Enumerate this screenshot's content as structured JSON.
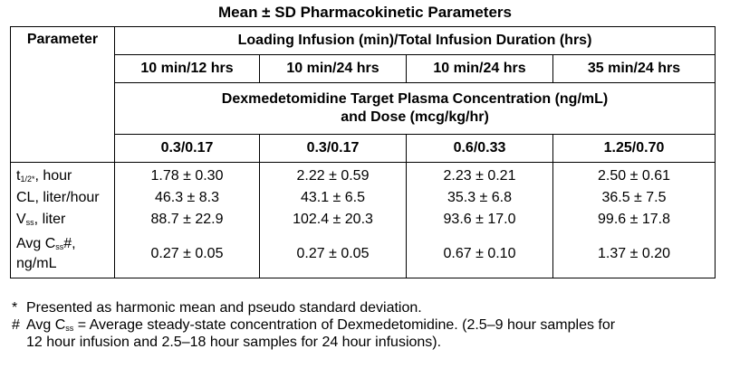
{
  "title": "Mean ± SD Pharmacokinetic Parameters",
  "header": {
    "parameter": "Parameter",
    "loading": "Loading Infusion (min)/Total Infusion Duration (hrs)",
    "durations": [
      "10 min/12 hrs",
      "10 min/24 hrs",
      "10 min/24 hrs",
      "35 min/24 hrs"
    ],
    "target_line1": "Dexmedetomidine Target Plasma Concentration (ng/mL)",
    "target_line2": "and Dose (mcg/kg/hr)",
    "doses": [
      "0.3/0.17",
      "0.3/0.17",
      "0.6/0.33",
      "1.25/0.70"
    ]
  },
  "rows": [
    {
      "label": "t",
      "sub": "1/2*",
      "suffix": ", hour",
      "values": [
        "1.78 ± 0.30",
        "2.22 ± 0.59",
        "2.23 ± 0.21",
        "2.50 ± 0.61"
      ]
    },
    {
      "label": "CL, liter/hour",
      "values": [
        "46.3 ± 8.3",
        "43.1 ± 6.5",
        "35.3 ± 6.8",
        "36.5 ± 7.5"
      ]
    },
    {
      "label": "V",
      "sub": "ss",
      "suffix": ", liter",
      "values": [
        "88.7 ± 22.9",
        "102.4 ± 20.3",
        "93.6 ± 17.0",
        "99.6 ± 17.8"
      ]
    },
    {
      "label": "Avg C",
      "sub": "ss",
      "suffix": "#,",
      "label2": "ng/mL",
      "values": [
        "0.27 ± 0.05",
        "0.27 ± 0.05",
        "0.67 ± 0.10",
        "1.37 ± 0.20"
      ]
    }
  ],
  "footnotes": {
    "star_mark": "*",
    "star_text": "Presented as harmonic mean and pseudo standard deviation.",
    "hash_mark": "#",
    "hash_pre": "Avg C",
    "hash_sub": "ss",
    "hash_line1": " = Average steady-state concentration of Dexmedetomidine. (2.5–9 hour samples for",
    "hash_line2": "12 hour infusion and 2.5–18 hour samples for 24 hour infusions)."
  }
}
